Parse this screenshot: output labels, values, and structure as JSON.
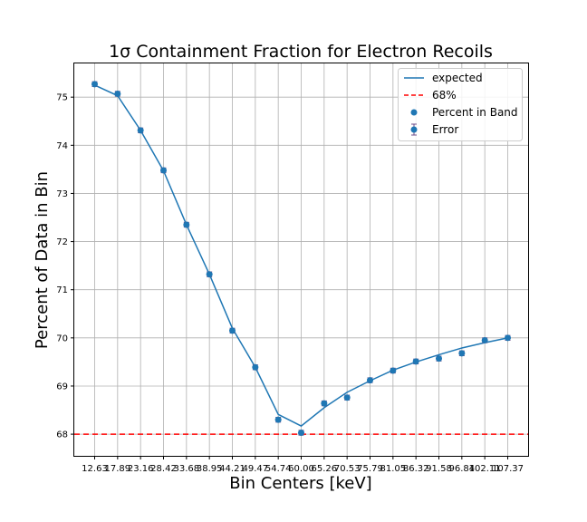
{
  "chart_data": {
    "type": "line",
    "title": "1σ Containment Fraction for Electron Recoils",
    "xlabel": "Bin Centers [keV]",
    "ylabel": "Percent of Data in Bin",
    "categories": [
      "12.63",
      "17.89",
      "23.16",
      "28.42",
      "33.68",
      "38.95",
      "44.21",
      "49.47",
      "54.74",
      "60.00",
      "65.26",
      "70.53",
      "75.79",
      "81.05",
      "86.32",
      "91.58",
      "96.84",
      "102.11",
      "107.37"
    ],
    "ylim": [
      67.55,
      75.7
    ],
    "yticks": [
      68,
      69,
      70,
      71,
      72,
      73,
      74,
      75
    ],
    "grid": true,
    "legend_position": "top-right",
    "colors": {
      "line": "#1f77b4",
      "points": "#1f77b4",
      "reference": "#ff0000",
      "errorbar": "#6b4b8a"
    },
    "series": [
      {
        "name": "expected",
        "kind": "line",
        "values": [
          75.25,
          75.03,
          74.31,
          73.47,
          72.35,
          71.32,
          70.2,
          69.39,
          68.41,
          68.17,
          68.55,
          68.87,
          69.11,
          69.33,
          69.5,
          69.65,
          69.79,
          69.9,
          70.0
        ]
      },
      {
        "name": "68%",
        "kind": "hline",
        "value": 68.0
      },
      {
        "name": "Percent in Band",
        "kind": "scatter",
        "values": [
          75.27,
          75.07,
          74.31,
          73.48,
          72.35,
          71.32,
          70.15,
          69.39,
          68.3,
          68.03,
          68.64,
          68.76,
          69.12,
          69.32,
          69.51,
          69.57,
          69.68,
          69.95,
          70.0
        ]
      },
      {
        "name": "Error",
        "kind": "errorbar",
        "values": [
          75.27,
          75.07,
          74.31,
          73.48,
          72.35,
          71.32,
          70.15,
          69.39,
          68.3,
          68.03,
          68.64,
          68.76,
          69.12,
          69.32,
          69.51,
          69.57,
          69.68,
          69.95,
          70.0
        ],
        "errors": [
          0.05,
          0.05,
          0.05,
          0.05,
          0.05,
          0.05,
          0.05,
          0.05,
          0.05,
          0.05,
          0.05,
          0.05,
          0.05,
          0.05,
          0.05,
          0.05,
          0.05,
          0.05,
          0.05
        ]
      }
    ]
  }
}
